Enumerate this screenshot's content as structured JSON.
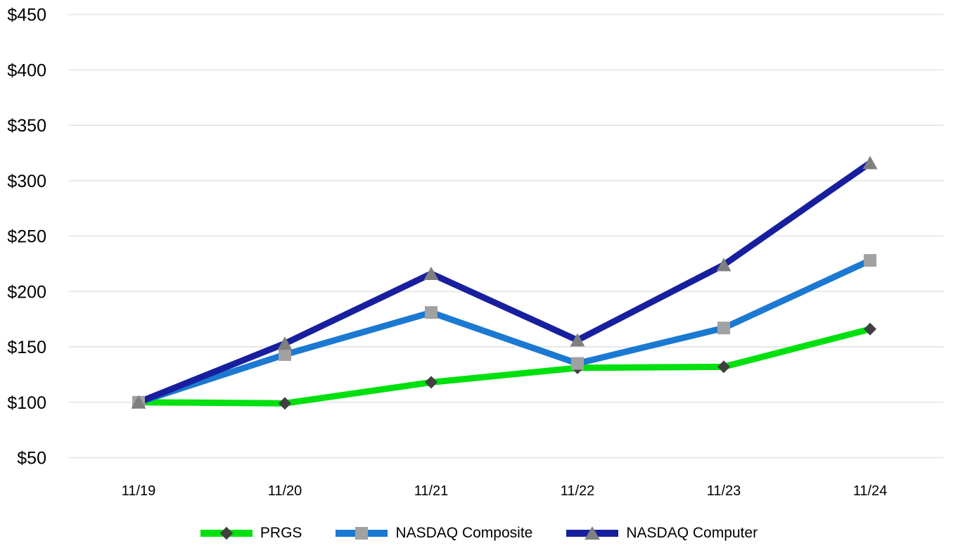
{
  "chart_data": {
    "type": "line",
    "title": "",
    "xlabel": "",
    "ylabel": "",
    "x": [
      "11/19",
      "11/20",
      "11/21",
      "11/22",
      "11/23",
      "11/24"
    ],
    "series": [
      {
        "name": "PRGS",
        "color": "#00e00e",
        "marker": "diamond",
        "marker_color": "#404040",
        "values": [
          100,
          99,
          118,
          131,
          132,
          166
        ]
      },
      {
        "name": "NASDAQ Composite",
        "color": "#1b79d2",
        "marker": "square",
        "marker_color": "#a1a1a1",
        "values": [
          100,
          143,
          181,
          135,
          167,
          228
        ]
      },
      {
        "name": "NASDAQ Computer",
        "color": "#181f9e",
        "marker": "triangle",
        "marker_color": "#7f7f7f",
        "values": [
          100,
          153,
          216,
          156,
          224,
          316
        ]
      }
    ],
    "ylim": [
      50,
      450
    ],
    "ytick_step": 50,
    "ytick_prefix": "$",
    "ytick_labels": [
      "$50",
      "$100",
      "$150",
      "$200",
      "$250",
      "$300",
      "$350",
      "$400",
      "$450"
    ],
    "grid": true,
    "grid_color": "#e8e8e8",
    "axis_text_color": "#000000",
    "legend_position": "bottom"
  }
}
